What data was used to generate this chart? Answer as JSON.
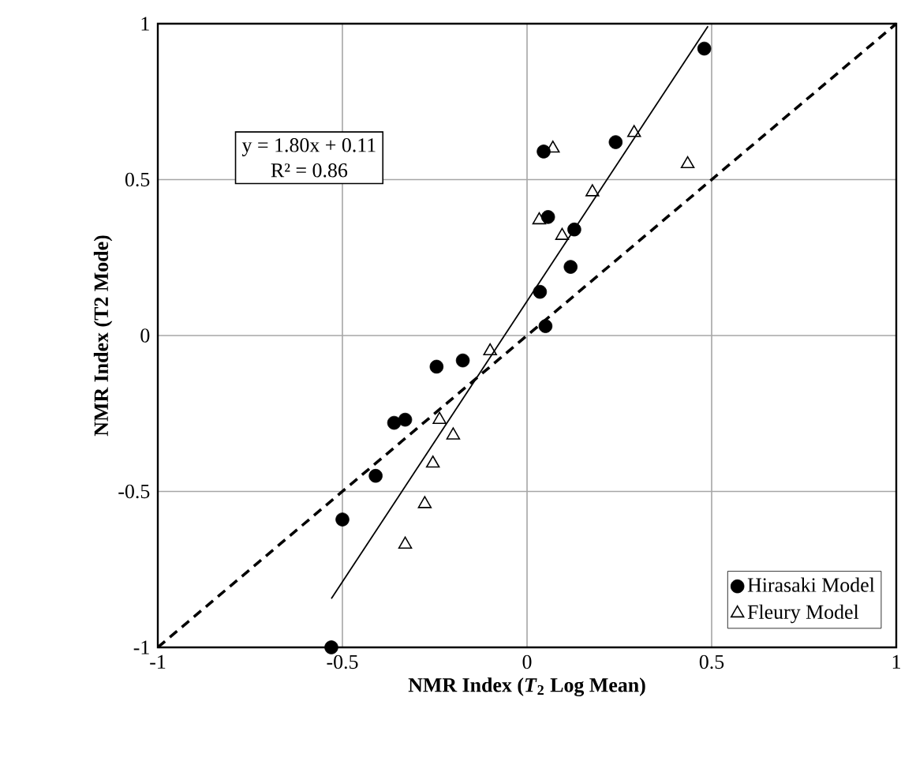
{
  "chart_data": {
    "type": "scatter",
    "xlabel": "NMR Index (*T*$_{2}$ Log Mean)",
    "ylabel": "NMR Index (T2 Mode)",
    "xlim": [
      -1,
      1
    ],
    "ylim": [
      -1,
      1
    ],
    "xticks": [
      -1,
      -0.5,
      0,
      0.5,
      1
    ],
    "yticks": [
      -1,
      -0.5,
      0,
      0.5,
      1
    ],
    "grid": true,
    "legend": "bottom right",
    "annotations": [
      "y = 1.80x + 0.11",
      "R² = 0.86"
    ],
    "series": [
      {
        "name": "Hirasaki Model",
        "color": "#000000",
        "marker": "circle",
        "x": [
          0.48,
          0.24,
          0.045,
          0.057,
          0.128,
          0.118,
          0.035,
          0.05,
          -0.245,
          -0.174,
          -0.36,
          -0.33,
          -0.41,
          -0.5,
          -0.53
        ],
        "values": [
          0.92,
          0.62,
          0.59,
          0.38,
          0.34,
          0.22,
          0.14,
          0.03,
          -0.1,
          -0.08,
          -0.28,
          -0.27,
          -0.45,
          -0.59,
          -1.0
        ]
      },
      {
        "name": "Fleury Model",
        "color": "#000000",
        "marker": "triangle",
        "x": [
          0.29,
          0.07,
          0.435,
          0.177,
          0.033,
          0.095,
          -0.1,
          -0.237,
          -0.2,
          -0.255,
          -0.277,
          -0.33
        ],
        "values": [
          0.65,
          0.6,
          0.55,
          0.46,
          0.37,
          0.32,
          -0.05,
          -0.27,
          -0.32,
          -0.41,
          -0.54,
          -0.67
        ]
      },
      {
        "type": "line",
        "color": "#000000",
        "line_style": "solid",
        "x": [
          -0.53,
          0.49
        ],
        "values": [
          -0.844,
          0.992
        ]
      },
      {
        "type": "line",
        "color": "#000000",
        "line_style": "dashed",
        "x": [
          -1,
          1
        ],
        "values": [
          -1,
          1
        ]
      }
    ]
  }
}
